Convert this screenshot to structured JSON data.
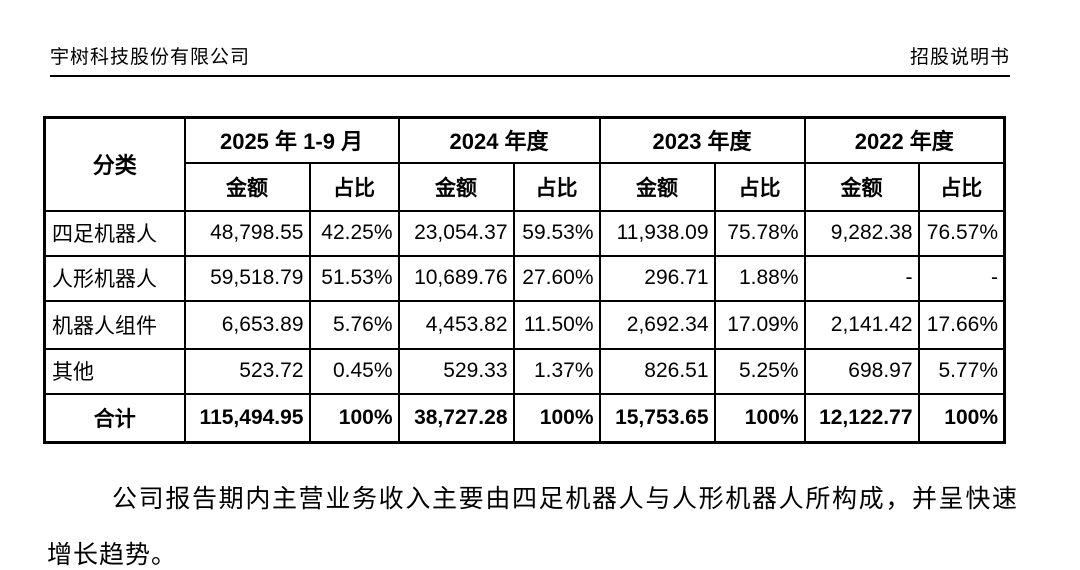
{
  "header": {
    "company": "宇树科技股份有限公司",
    "doc_title": "招股说明书"
  },
  "table": {
    "category_header": "分类",
    "period_headers": [
      "2025 年 1-9 月",
      "2024 年度",
      "2023 年度",
      "2022 年度"
    ],
    "sub_headers": {
      "amount": "金额",
      "ratio": "占比"
    },
    "rows": [
      {
        "category": "四足机器人",
        "values": [
          "48,798.55",
          "42.25%",
          "23,054.37",
          "59.53%",
          "11,938.09",
          "75.78%",
          "9,282.38",
          "76.57%"
        ]
      },
      {
        "category": "人形机器人",
        "values": [
          "59,518.79",
          "51.53%",
          "10,689.76",
          "27.60%",
          "296.71",
          "1.88%",
          "-",
          "-"
        ]
      },
      {
        "category": "机器人组件",
        "values": [
          "6,653.89",
          "5.76%",
          "4,453.82",
          "11.50%",
          "2,692.34",
          "17.09%",
          "2,141.42",
          "17.66%"
        ]
      },
      {
        "category": "其他",
        "values": [
          "523.72",
          "0.45%",
          "529.33",
          "1.37%",
          "826.51",
          "5.25%",
          "698.97",
          "5.77%"
        ]
      }
    ],
    "total_row": {
      "category": "合计",
      "values": [
        "115,494.95",
        "100%",
        "38,727.28",
        "100%",
        "15,753.65",
        "100%",
        "12,122.77",
        "100%"
      ]
    }
  },
  "paragraph": "公司报告期内主营业务收入主要由四足机器人与人形机器人所构成，并呈快速增长趋势。",
  "colors": {
    "text": "#000000",
    "background": "#ffffff",
    "table_border": "#000000"
  }
}
